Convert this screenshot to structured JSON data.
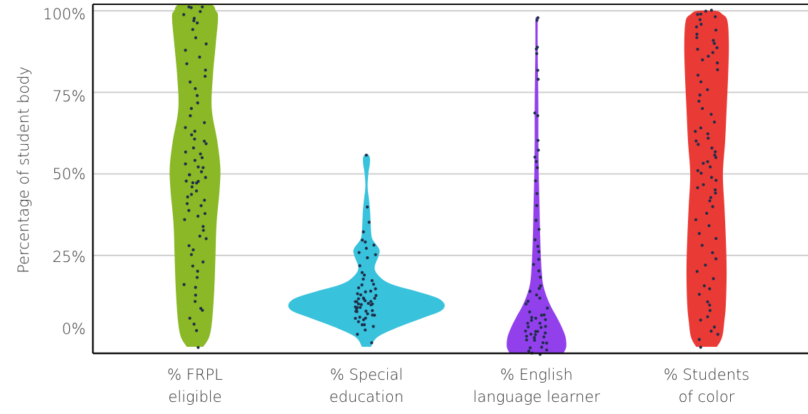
{
  "chart_data": {
    "type": "violin",
    "title": "",
    "ylabel": "Percentage of student body",
    "xlabel": "",
    "ylim": [
      -5,
      102
    ],
    "yticks": [
      {
        "value": 0,
        "label": "0%"
      },
      {
        "value": 25,
        "label": "25%"
      },
      {
        "value": 50,
        "label": "50%"
      },
      {
        "value": 75,
        "label": "75%"
      },
      {
        "value": 100,
        "label": "100%"
      }
    ],
    "grid": true,
    "categories": [
      {
        "line1": "% FRPL",
        "line2": "eligible"
      },
      {
        "line1": "% Special",
        "line2": "education"
      },
      {
        "line1": "% English",
        "line2": "language learner"
      },
      {
        "line1": "% Students",
        "line2": "of color"
      }
    ],
    "series": [
      {
        "color": "#8ab826",
        "density": [
          [
            -3,
            0.22
          ],
          [
            0,
            0.38
          ],
          [
            5,
            0.46
          ],
          [
            15,
            0.52
          ],
          [
            25,
            0.55
          ],
          [
            35,
            0.58
          ],
          [
            45,
            0.66
          ],
          [
            52,
            0.68
          ],
          [
            60,
            0.6
          ],
          [
            70,
            0.45
          ],
          [
            80,
            0.48
          ],
          [
            90,
            0.56
          ],
          [
            98,
            0.62
          ],
          [
            100,
            0.56
          ],
          [
            102,
            0.4
          ]
        ],
        "points": [
          -3,
          2,
          4,
          6,
          8,
          9,
          11,
          13,
          15,
          16,
          18,
          20,
          22,
          23,
          25,
          27,
          28,
          30,
          31,
          33,
          34,
          36,
          37,
          38,
          39,
          40,
          41,
          42,
          43,
          44,
          45,
          46,
          47,
          47,
          48,
          48,
          49,
          50,
          50,
          51,
          52,
          52,
          53,
          54,
          55,
          56,
          57,
          58,
          59,
          60,
          61,
          62,
          63,
          64,
          66,
          68,
          70,
          72,
          74,
          76,
          78,
          80,
          82,
          84,
          86,
          88,
          90,
          92,
          94,
          96,
          97,
          98,
          99,
          100,
          101,
          101,
          101
        ]
      },
      {
        "color": "#38c2dc",
        "density": [
          [
            -3,
            0.12
          ],
          [
            0,
            0.3
          ],
          [
            3,
            0.85
          ],
          [
            6,
            1.55
          ],
          [
            8,
            2.0
          ],
          [
            10,
            2.1
          ],
          [
            12,
            1.9
          ],
          [
            14,
            1.35
          ],
          [
            16,
            0.72
          ],
          [
            18,
            0.4
          ],
          [
            21,
            0.22
          ],
          [
            25,
            0.33
          ],
          [
            27,
            0.34
          ],
          [
            30,
            0.16
          ],
          [
            33,
            0.12
          ],
          [
            38,
            0.1
          ],
          [
            42,
            0.07
          ],
          [
            46,
            0.03
          ],
          [
            50,
            0.05
          ],
          [
            53,
            0.09
          ],
          [
            55,
            0.09
          ],
          [
            56,
            0.04
          ]
        ],
        "points": [
          -2,
          1,
          2,
          3,
          4,
          4,
          5,
          5,
          6,
          6,
          6,
          7,
          7,
          7,
          8,
          8,
          8,
          8,
          9,
          9,
          9,
          9,
          10,
          10,
          10,
          10,
          10,
          11,
          11,
          11,
          11,
          12,
          12,
          12,
          12,
          13,
          13,
          13,
          14,
          14,
          15,
          15,
          16,
          16,
          17,
          18,
          19,
          20,
          22,
          24,
          25,
          26,
          27,
          28,
          29,
          30,
          32,
          35,
          40,
          56
        ]
      },
      {
        "color": "#9140ec",
        "density": [
          [
            -5,
            0.72
          ],
          [
            -3,
            0.8
          ],
          [
            0,
            0.78
          ],
          [
            3,
            0.68
          ],
          [
            6,
            0.55
          ],
          [
            10,
            0.36
          ],
          [
            15,
            0.2
          ],
          [
            20,
            0.14
          ],
          [
            30,
            0.1
          ],
          [
            40,
            0.08
          ],
          [
            50,
            0.06
          ],
          [
            60,
            0.05
          ],
          [
            70,
            0.05
          ],
          [
            80,
            0.04
          ],
          [
            90,
            0.03
          ],
          [
            97,
            0.03
          ],
          [
            98,
            0.01
          ]
        ],
        "points": [
          -5,
          -5,
          -4,
          -4,
          -3,
          -3,
          -2,
          -2,
          -1,
          -1,
          0,
          0,
          0,
          1,
          1,
          1,
          2,
          2,
          2,
          3,
          3,
          3,
          4,
          4,
          5,
          5,
          6,
          6,
          7,
          7,
          8,
          9,
          10,
          11,
          12,
          13,
          14,
          15,
          16,
          18,
          20,
          22,
          24,
          26,
          28,
          30,
          33,
          36,
          40,
          44,
          48,
          52,
          54,
          55,
          57,
          60,
          68,
          69,
          79,
          82,
          87,
          88,
          89,
          97,
          98
        ]
      },
      {
        "color": "#ea3a35",
        "density": [
          [
            -3,
            0.28
          ],
          [
            0,
            0.42
          ],
          [
            5,
            0.48
          ],
          [
            10,
            0.52
          ],
          [
            20,
            0.54
          ],
          [
            30,
            0.52
          ],
          [
            40,
            0.48
          ],
          [
            50,
            0.44
          ],
          [
            60,
            0.5
          ],
          [
            70,
            0.54
          ],
          [
            80,
            0.58
          ],
          [
            90,
            0.6
          ],
          [
            97,
            0.56
          ],
          [
            99,
            0.42
          ],
          [
            100,
            0.25
          ]
        ],
        "points": [
          -3,
          -1,
          1,
          2,
          3,
          5,
          6,
          8,
          10,
          11,
          13,
          15,
          16,
          18,
          20,
          22,
          24,
          26,
          28,
          30,
          32,
          34,
          36,
          38,
          40,
          42,
          43,
          44,
          45,
          46,
          47,
          48,
          49,
          50,
          51,
          52,
          53,
          54,
          55,
          56,
          57,
          58,
          59,
          60,
          61,
          62,
          63,
          64,
          66,
          68,
          70,
          72,
          74,
          76,
          78,
          80,
          82,
          84,
          85,
          86,
          87,
          88,
          89,
          90,
          91,
          92,
          93,
          94,
          95,
          96,
          97,
          98,
          99,
          99,
          100,
          100
        ]
      }
    ]
  }
}
